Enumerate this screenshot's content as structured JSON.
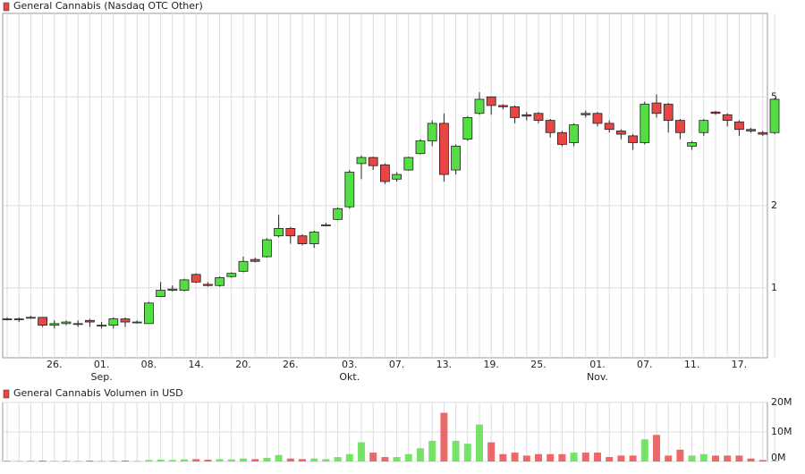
{
  "chart_data": [
    {
      "type": "candlestick",
      "title": "General Cannabis (Nasdaq OTC Other)",
      "log_scale": true,
      "grid": true,
      "up_color": "#55dd44",
      "down_color": "#e84545",
      "categories": [
        null,
        null,
        null,
        null,
        "26.",
        null,
        null,
        null,
        "01.",
        null,
        null,
        null,
        "08.",
        null,
        null,
        null,
        "14.",
        null,
        null,
        null,
        "20.",
        null,
        null,
        null,
        "26.",
        null,
        null,
        null,
        null,
        "03.",
        null,
        null,
        null,
        "07.",
        null,
        null,
        null,
        "13.",
        null,
        null,
        null,
        "19.",
        null,
        null,
        null,
        "25.",
        null,
        null,
        null,
        null,
        "01.",
        null,
        null,
        null,
        "07.",
        null,
        null,
        null,
        "11.",
        null,
        null,
        null,
        "17.",
        null,
        null,
        null
      ],
      "months": [
        null,
        null,
        null,
        null,
        null,
        null,
        null,
        null,
        "Sep.",
        null,
        null,
        null,
        null,
        null,
        null,
        null,
        null,
        null,
        null,
        null,
        null,
        null,
        null,
        null,
        null,
        null,
        null,
        null,
        null,
        "Okt.",
        null,
        null,
        null,
        null,
        null,
        null,
        null,
        null,
        null,
        null,
        null,
        null,
        null,
        null,
        null,
        null,
        null,
        null,
        null,
        null,
        "Nov.",
        null,
        null,
        null,
        null,
        null,
        null,
        null,
        null,
        null,
        null,
        null,
        null,
        null,
        null,
        null
      ],
      "open": [
        0.77,
        0.77,
        0.78,
        0.78,
        0.73,
        0.74,
        0.74,
        0.76,
        0.73,
        0.73,
        0.77,
        0.75,
        0.74,
        0.93,
        0.98,
        0.98,
        1.12,
        1.03,
        1.02,
        1.1,
        1.15,
        1.27,
        1.3,
        1.55,
        1.65,
        1.55,
        1.45,
        1.7,
        1.78,
        1.98,
        2.85,
        3.0,
        2.82,
        2.5,
        2.7,
        3.1,
        3.45,
        4.0,
        2.7,
        3.5,
        4.35,
        5.0,
        4.65,
        4.6,
        4.3,
        4.35,
        4.1,
        3.7,
        3.4,
        4.35,
        4.35,
        4.0,
        3.75,
        3.6,
        3.4,
        4.75,
        4.7,
        4.1,
        3.3,
        3.7,
        4.4,
        4.3,
        4.05,
        3.8,
        3.7,
        3.7
      ],
      "high": [
        0.78,
        0.78,
        0.79,
        0.78,
        0.76,
        0.76,
        0.76,
        0.77,
        0.75,
        0.78,
        0.78,
        0.76,
        0.89,
        1.05,
        1.02,
        1.08,
        1.13,
        1.05,
        1.1,
        1.14,
        1.3,
        1.29,
        1.52,
        1.85,
        1.67,
        1.57,
        1.62,
        1.73,
        1.97,
        2.7,
        3.05,
        3.02,
        2.85,
        2.65,
        3.02,
        3.5,
        4.1,
        4.35,
        3.35,
        4.25,
        5.2,
        5.0,
        4.7,
        4.65,
        4.4,
        4.4,
        4.15,
        3.75,
        4.0,
        4.45,
        4.4,
        4.1,
        3.8,
        3.65,
        4.8,
        5.1,
        4.75,
        4.15,
        3.45,
        4.15,
        4.45,
        4.35,
        4.1,
        3.85,
        3.75,
        4.95
      ],
      "low": [
        0.76,
        0.75,
        0.77,
        0.72,
        0.71,
        0.73,
        0.72,
        0.72,
        0.71,
        0.71,
        0.72,
        0.74,
        0.74,
        0.93,
        0.97,
        0.97,
        1.04,
        1.01,
        1.01,
        1.09,
        1.14,
        1.24,
        1.29,
        1.53,
        1.45,
        1.43,
        1.4,
        1.68,
        1.77,
        1.95,
        2.5,
        2.7,
        2.4,
        2.45,
        2.68,
        3.08,
        3.3,
        2.45,
        2.6,
        3.45,
        4.3,
        4.3,
        4.5,
        4.0,
        4.1,
        4.0,
        3.55,
        3.3,
        3.3,
        4.2,
        3.9,
        3.7,
        3.5,
        3.2,
        3.35,
        4.2,
        3.7,
        3.5,
        3.2,
        3.6,
        4.3,
        3.9,
        3.6,
        3.7,
        3.6,
        3.65
      ],
      "close": [
        0.77,
        0.77,
        0.78,
        0.73,
        0.74,
        0.75,
        0.74,
        0.75,
        0.73,
        0.77,
        0.75,
        0.75,
        0.88,
        0.98,
        0.99,
        1.07,
        1.05,
        1.02,
        1.09,
        1.13,
        1.25,
        1.25,
        1.5,
        1.65,
        1.55,
        1.45,
        1.6,
        1.7,
        1.95,
        2.65,
        3.0,
        2.8,
        2.45,
        2.6,
        3.0,
        3.45,
        4.0,
        2.6,
        3.3,
        4.2,
        4.9,
        4.65,
        4.6,
        4.2,
        4.25,
        4.1,
        3.7,
        3.35,
        3.95,
        4.3,
        4.0,
        3.8,
        3.65,
        3.4,
        4.7,
        4.35,
        4.1,
        3.7,
        3.4,
        4.1,
        4.35,
        4.1,
        3.8,
        3.75,
        3.65,
        4.9
      ],
      "ylim": [
        0.555,
        10.1
      ],
      "yticks": [
        1,
        2,
        5
      ]
    },
    {
      "type": "volume",
      "title": "General Cannabis Volumen in USD",
      "values": [
        0.3,
        0.2,
        0.3,
        0.3,
        0.2,
        0.3,
        0.2,
        0.3,
        0.2,
        0.3,
        0.3,
        0.2,
        0.5,
        0.6,
        0.5,
        0.7,
        0.8,
        0.6,
        0.8,
        0.7,
        1.0,
        0.8,
        1.2,
        2.2,
        1.0,
        0.8,
        1.0,
        0.8,
        1.5,
        2.5,
        6.5,
        3.0,
        1.5,
        1.5,
        2.5,
        4.5,
        7.0,
        16.5,
        7.0,
        6.0,
        12.5,
        6.5,
        2.5,
        3.0,
        2.0,
        2.5,
        2.5,
        2.5,
        3.0,
        3.0,
        3.0,
        1.5,
        2.0,
        2.0,
        7.5,
        9.0,
        2.0,
        4.0,
        2.0,
        2.5,
        2.0,
        2.0,
        2.0,
        1.0,
        0.5,
        0.3
      ],
      "ylim": [
        0,
        20
      ],
      "yticks": [
        {
          "value": 0,
          "label": "0M"
        },
        {
          "value": 10,
          "label": "10M"
        },
        {
          "value": 20,
          "label": "20M"
        }
      ]
    }
  ]
}
